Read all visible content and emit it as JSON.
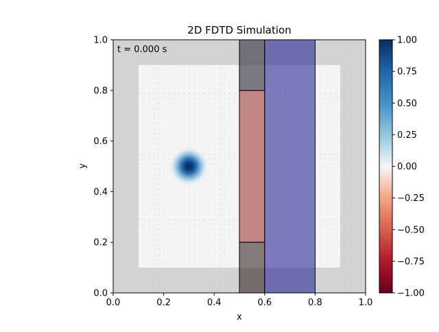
{
  "chart_data": {
    "type": "heatmap",
    "title": "2D FDTD Simulation",
    "xlabel": "x",
    "ylabel": "y",
    "xlim": [
      0.0,
      1.0
    ],
    "ylim": [
      0.0,
      1.0
    ],
    "x_ticks": [
      "0.0",
      "0.2",
      "0.4",
      "0.6",
      "0.8",
      "1.0"
    ],
    "y_ticks": [
      "0.0",
      "0.2",
      "0.4",
      "0.6",
      "0.8",
      "1.0"
    ],
    "time_annotation": "t = 0.000 s",
    "colormap": "RdBu",
    "color_range": [
      -1.0,
      1.0
    ],
    "colorbar_ticks": [
      "1.00",
      "0.75",
      "0.50",
      "0.25",
      "0.00",
      "−0.25",
      "−0.50",
      "−0.75",
      "−1.00"
    ],
    "field_source": {
      "x": 0.3,
      "y": 0.5,
      "peak": 1.0,
      "width": 0.04
    },
    "pml_boundary": {
      "thickness": 0.1,
      "color": "#d3d3d3"
    },
    "regions": [
      {
        "name": "upper-block",
        "x": [
          0.5,
          0.6
        ],
        "y": [
          0.8,
          1.0
        ],
        "color": "#3a3a48",
        "opacity": 0.65
      },
      {
        "name": "middle-block",
        "x": [
          0.5,
          0.6
        ],
        "y": [
          0.2,
          0.8
        ],
        "color": "#a33a3a",
        "opacity": 0.6
      },
      {
        "name": "lower-block",
        "x": [
          0.5,
          0.6
        ],
        "y": [
          0.0,
          0.2
        ],
        "color": "#3a2a24",
        "opacity": 0.6
      },
      {
        "name": "blue-slab",
        "x": [
          0.6,
          0.8
        ],
        "y": [
          0.0,
          1.0
        ],
        "color": "#2b2b98",
        "opacity": 0.6
      }
    ]
  }
}
